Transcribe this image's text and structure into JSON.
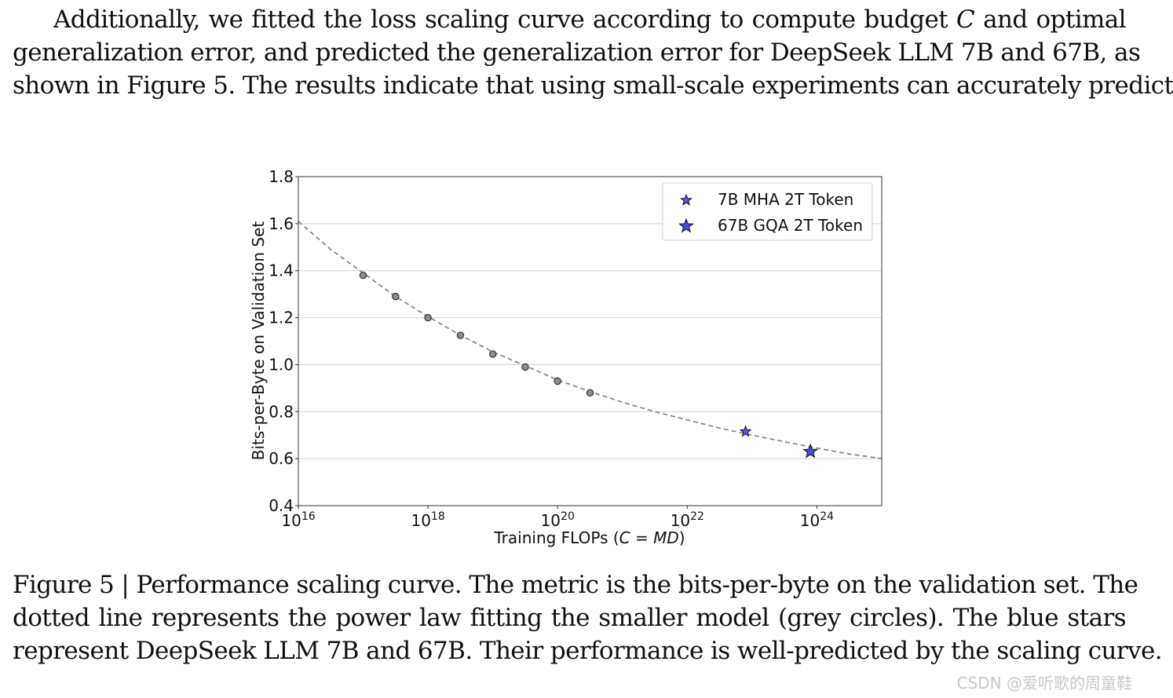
{
  "intro": {
    "lines": [
      "Additionally, we fitted the loss scaling curve according to compute budget C and optimal",
      "generalization error, and predicted the generalization error for DeepSeek LLM 7B and 67B, as",
      "shown in Figure 5. The results indicate that using small-scale experiments can accurately predict"
    ]
  },
  "chart_data": {
    "type": "scatter",
    "xscale": "log",
    "xlim_exp": [
      16,
      25
    ],
    "ylim": [
      0.4,
      1.8
    ],
    "xlabel": "Training FLOPs (C = MD)",
    "ylabel": "Bits-per-Byte on Validation Set",
    "xticks": [
      {
        "exp": 16,
        "base": "10",
        "sup": "16"
      },
      {
        "exp": 18,
        "base": "10",
        "sup": "18"
      },
      {
        "exp": 20,
        "base": "10",
        "sup": "20"
      },
      {
        "exp": 22,
        "base": "10",
        "sup": "22"
      },
      {
        "exp": 24,
        "base": "10",
        "sup": "24"
      }
    ],
    "yticks": [
      "0.4",
      "0.6",
      "0.8",
      "1.0",
      "1.2",
      "1.4",
      "1.6",
      "1.8"
    ],
    "grid": "horizontal",
    "legend_position": "top-right",
    "fit_curve": {
      "name": "power law fit",
      "style": "dashed",
      "color": "#7f7f7f",
      "points": [
        [
          16.0,
          1.61
        ],
        [
          16.5,
          1.49
        ],
        [
          17.0,
          1.39
        ],
        [
          17.5,
          1.29
        ],
        [
          18.0,
          1.205
        ],
        [
          18.5,
          1.125
        ],
        [
          19.0,
          1.055
        ],
        [
          19.5,
          0.995
        ],
        [
          20.0,
          0.935
        ],
        [
          20.5,
          0.885
        ],
        [
          21.0,
          0.84
        ],
        [
          21.5,
          0.8
        ],
        [
          22.0,
          0.765
        ],
        [
          22.5,
          0.73
        ],
        [
          23.0,
          0.7
        ],
        [
          23.5,
          0.672
        ],
        [
          24.0,
          0.645
        ],
        [
          24.5,
          0.62
        ],
        [
          25.0,
          0.6
        ]
      ]
    },
    "series": [
      {
        "name": "small models",
        "marker": "circle",
        "color": "#8c8c8c",
        "points": [
          [
            17.0,
            1.38
          ],
          [
            17.5,
            1.29
          ],
          [
            18.0,
            1.2
          ],
          [
            18.5,
            1.125
          ],
          [
            19.0,
            1.045
          ],
          [
            19.5,
            0.99
          ],
          [
            20.0,
            0.93
          ],
          [
            20.5,
            0.88
          ]
        ]
      },
      {
        "name": "7B MHA 2T Token",
        "marker": "star",
        "color": "#5a5ae6",
        "points": [
          [
            22.9,
            0.715
          ]
        ]
      },
      {
        "name": "67B GQA 2T Token",
        "marker": "star",
        "color": "#4a4ae6",
        "points": [
          [
            23.9,
            0.63
          ]
        ]
      }
    ],
    "legend": [
      "7B MHA 2T Token",
      "67B GQA 2T Token"
    ]
  },
  "caption": {
    "lines": [
      "Figure 5 | Performance scaling curve. The metric is the bits-per-byte on the validation set. The",
      "dotted line represents the power law fitting the smaller model (grey circles). The blue stars",
      "represent DeepSeek LLM 7B and 67B. Their performance is well-predicted by the scaling curve."
    ]
  },
  "watermark": "CSDN @爱听歌的周童鞋"
}
